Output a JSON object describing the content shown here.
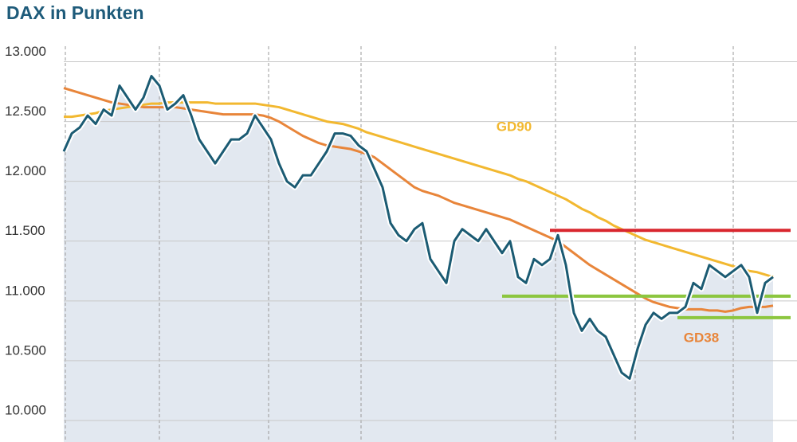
{
  "chart_data": {
    "type": "line",
    "title": "DAX in Punkten",
    "categories": [
      null,
      null,
      null,
      null,
      null,
      null,
      null,
      null,
      null,
      null,
      null,
      null,
      null,
      null,
      null,
      null,
      null,
      null,
      null,
      null,
      null,
      null,
      null,
      null,
      null,
      null,
      null,
      null,
      null,
      null,
      null,
      null,
      null,
      null,
      null,
      null,
      null,
      null,
      null,
      null,
      null,
      null,
      null,
      null,
      null,
      null,
      null,
      null,
      null,
      null,
      null,
      null,
      null,
      null,
      null,
      null,
      null,
      null,
      null,
      null,
      null,
      null,
      null,
      null,
      null,
      null,
      null,
      null,
      null,
      null,
      null,
      null,
      null,
      null,
      null,
      null,
      null,
      null,
      null,
      null,
      null,
      null,
      null,
      null,
      null,
      null,
      null,
      null,
      null,
      null
    ],
    "series": [
      {
        "color": "#1b5b73",
        "values": [
          12250,
          12400,
          12450,
          12550,
          12480,
          12600,
          12550,
          12800,
          12700,
          12600,
          12700,
          12880,
          12800,
          12600,
          12650,
          12720,
          12550,
          12350,
          12250,
          12150,
          12250,
          12350,
          12350,
          12400,
          12550,
          12450,
          12350,
          12150,
          12000,
          11950,
          12050,
          12050,
          12150,
          12250,
          12400,
          12400,
          12380,
          12300,
          12250,
          12100,
          11950,
          11650,
          11550,
          11500,
          11600,
          11650,
          11350,
          11250,
          11150,
          11500,
          11600,
          11550,
          11500,
          11600,
          11500,
          11400,
          11500,
          11200,
          11150,
          11350,
          11300,
          11350,
          11550,
          11300,
          10900,
          10750,
          10850,
          10750,
          10700,
          10550,
          10400,
          10350,
          10600,
          10800,
          10900,
          10850,
          10900,
          10900,
          10950,
          11150,
          11100,
          11300,
          11250,
          11200,
          11250,
          11300,
          11200,
          10900,
          11150,
          11200
        ]
      },
      {
        "name": "GD90",
        "color": "#f2b830",
        "values": [
          12540,
          12540,
          12550,
          12560,
          12570,
          12590,
          12600,
          12610,
          12620,
          12630,
          12640,
          12650,
          12650,
          12660,
          12660,
          12660,
          12660,
          12660,
          12660,
          12650,
          12650,
          12650,
          12650,
          12650,
          12650,
          12640,
          12630,
          12620,
          12600,
          12580,
          12560,
          12540,
          12520,
          12500,
          12490,
          12480,
          12460,
          12440,
          12410,
          12390,
          12370,
          12350,
          12330,
          12310,
          12290,
          12270,
          12250,
          12230,
          12210,
          12190,
          12170,
          12150,
          12130,
          12110,
          12090,
          12070,
          12050,
          12020,
          12000,
          11970,
          11940,
          11910,
          11880,
          11850,
          11810,
          11770,
          11740,
          11700,
          11670,
          11630,
          11600,
          11570,
          11540,
          11510,
          11490,
          11470,
          11450,
          11430,
          11410,
          11390,
          11370,
          11350,
          11330,
          11310,
          11290,
          11270,
          11250,
          11240,
          11220,
          11200
        ]
      },
      {
        "name": "GD38",
        "color": "#e8853a",
        "values": [
          12780,
          12760,
          12740,
          12720,
          12700,
          12680,
          12660,
          12650,
          12640,
          12630,
          12620,
          12620,
          12620,
          12620,
          12620,
          12610,
          12600,
          12590,
          12580,
          12570,
          12560,
          12560,
          12560,
          12560,
          12560,
          12550,
          12530,
          12500,
          12460,
          12420,
          12380,
          12350,
          12320,
          12300,
          12290,
          12280,
          12270,
          12250,
          12230,
          12200,
          12150,
          12100,
          12050,
          12000,
          11950,
          11920,
          11900,
          11880,
          11850,
          11820,
          11800,
          11780,
          11760,
          11740,
          11720,
          11700,
          11680,
          11650,
          11620,
          11590,
          11560,
          11530,
          11500,
          11450,
          11400,
          11350,
          11300,
          11260,
          11220,
          11180,
          11140,
          11100,
          11060,
          11020,
          10990,
          10970,
          10950,
          10940,
          10930,
          10930,
          10930,
          10920,
          10920,
          10910,
          10920,
          10940,
          10950,
          10950,
          10950,
          10960
        ]
      }
    ],
    "hlines": [
      {
        "value": 11590,
        "color": "#d9262e",
        "from": 61
      },
      {
        "value": 11040,
        "color": "#8cc63f",
        "from": 55
      },
      {
        "value": 10860,
        "color": "#8cc63f",
        "from": 77
      }
    ],
    "ylim": [
      9820,
      13130
    ],
    "yticks": [
      {
        "value": 10000,
        "label": "10.000"
      },
      {
        "value": 10500,
        "label": "10.500"
      },
      {
        "value": 11000,
        "label": "11.000"
      },
      {
        "value": 11500,
        "label": "11.500"
      },
      {
        "value": 12000,
        "label": "12.000"
      },
      {
        "value": 12500,
        "label": "12.500"
      },
      {
        "value": 13000,
        "label": "13.000"
      }
    ],
    "grid": true,
    "area_color": "#e2e8f0"
  }
}
